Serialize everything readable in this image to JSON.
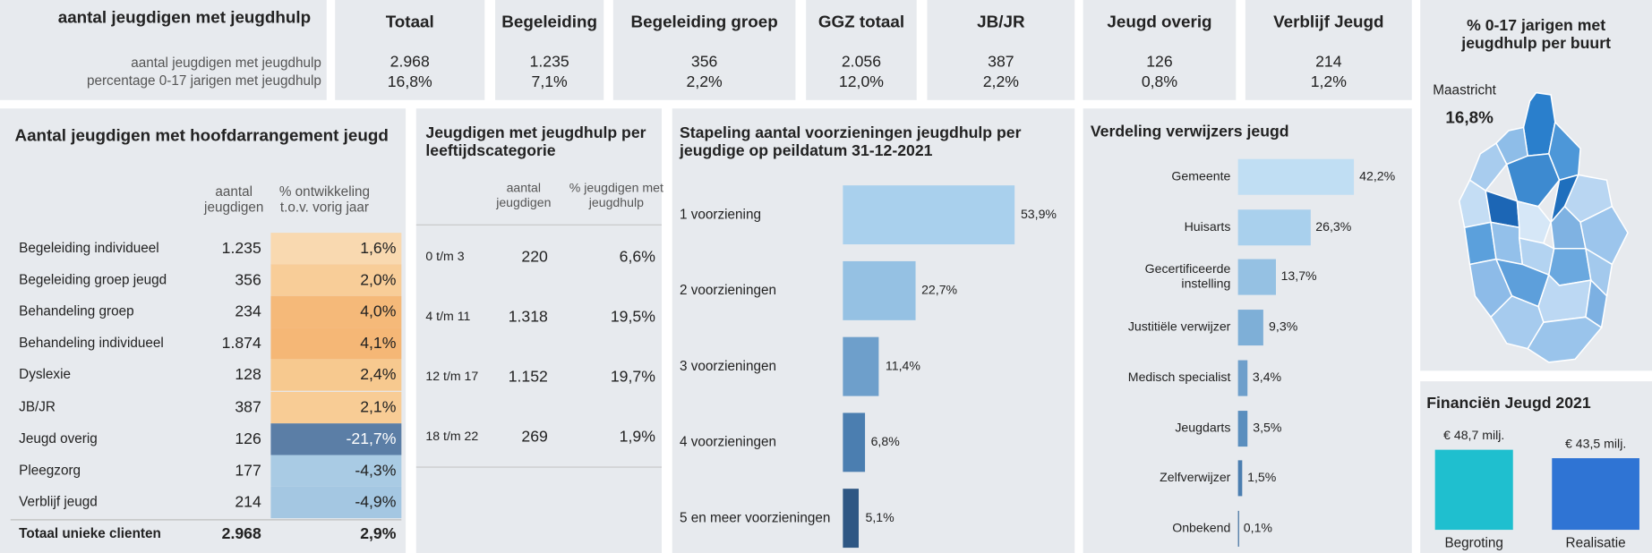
{
  "kpi": {
    "title": "aantal jeugdigen met jeugdhulp",
    "row_labels": [
      "aantal jeugdigen met jeugdhulp",
      "percentage 0-17 jarigen met jeugdhulp"
    ],
    "columns": [
      {
        "name": "Totaal",
        "count": "2.968",
        "pct": "16,8%"
      },
      {
        "name": "Begeleiding",
        "count": "1.235",
        "pct": "7,1%"
      },
      {
        "name": "Begeleiding groep",
        "count": "356",
        "pct": "2,2%"
      },
      {
        "name": "GGZ totaal",
        "count": "2.056",
        "pct": "12,0%"
      },
      {
        "name": "JB/JR",
        "count": "387",
        "pct": "2,2%"
      },
      {
        "name": "Jeugd overig",
        "count": "126",
        "pct": "0,8%"
      },
      {
        "name": "Verblijf Jeugd",
        "count": "214",
        "pct": "1,2%"
      }
    ]
  },
  "map": {
    "title": "% 0-17 jarigen met jeugdhulp per buurt",
    "place": "Maastricht",
    "value": "16,8%"
  },
  "arrangement": {
    "title": "Aantal jeugdigen met hoofdarrangement jeugd",
    "headers": [
      "aantal jeugdigen",
      "% ontwikkeling t.o.v. vorig jaar"
    ],
    "rows": [
      {
        "name": "Begeleiding individueel",
        "count": "1.235",
        "change": "1,6%",
        "color": "#f9d9b0"
      },
      {
        "name": "Begeleiding groep jeugd",
        "count": "356",
        "change": "2,0%",
        "color": "#f8cd98"
      },
      {
        "name": "Behandeling groep",
        "count": "234",
        "change": "4,0%",
        "color": "#f5b979"
      },
      {
        "name": "Behandeling individueel",
        "count": "1.874",
        "change": "4,1%",
        "color": "#f5b776"
      },
      {
        "name": "Dyslexie",
        "count": "128",
        "change": "2,4%",
        "color": "#f7c98f"
      },
      {
        "name": "JB/JR",
        "count": "387",
        "change": "2,1%",
        "color": "#f8cc95"
      },
      {
        "name": "Jeugd overig",
        "count": "126",
        "change": "-21,7%",
        "color": "#5b7ea6"
      },
      {
        "name": "Pleegzorg",
        "count": "177",
        "change": "-4,3%",
        "color": "#a9cbe4"
      },
      {
        "name": "Verblijf jeugd",
        "count": "214",
        "change": "-4,9%",
        "color": "#a4c7e2"
      }
    ],
    "total": {
      "name": "Totaal unieke clienten",
      "count": "2.968",
      "change": "2,9%"
    }
  },
  "age": {
    "title": "Jeugdigen met jeugdhulp per leeftijdscategorie",
    "headers": [
      "aantal jeugdigen",
      "% jeugdigen met jeugdhulp"
    ],
    "rows": [
      {
        "name": "0 t/m 3",
        "count": "220",
        "pct": "6,6%"
      },
      {
        "name": "4 t/m 11",
        "count": "1.318",
        "pct": "19,5%"
      },
      {
        "name": "12 t/m 17",
        "count": "1.152",
        "pct": "19,7%"
      },
      {
        "name": "18 t/m 22",
        "count": "269",
        "pct": "1,9%"
      }
    ]
  },
  "stacking": {
    "title": "Stapeling aantal voorzieningen jeugdhulp per jeugdige op peildatum 31-12-2021",
    "categories": [
      "1 voorziening",
      "2 voorzieningen",
      "3 voorzieningen",
      "4 voorzieningen",
      "5 en meer voorzieningen"
    ],
    "values": [
      53.9,
      22.7,
      11.4,
      6.8,
      5.1
    ],
    "value_labels": [
      "53,9%",
      "22,7%",
      "11,4%",
      "6,8%",
      "5,1%"
    ],
    "colors": [
      "#a9d0ed",
      "#95c1e3",
      "#6e9fcb",
      "#4b7eb0",
      "#2e5784"
    ]
  },
  "referrers": {
    "title": "Verdeling verwijzers jeugd",
    "categories": [
      "Gemeente",
      "Huisarts",
      "Gecertificeerde instelling",
      "Justitiële verwijzer",
      "Medisch specialist",
      "Jeugdarts",
      "Zelfverwijzer",
      "Onbekend"
    ],
    "values": [
      42.2,
      26.3,
      13.7,
      9.3,
      3.4,
      3.5,
      1.5,
      0.1
    ],
    "value_labels": [
      "42,2%",
      "26,3%",
      "13,7%",
      "9,3%",
      "3,4%",
      "3,5%",
      "1,5%",
      "0,1%"
    ],
    "colors": [
      "#c0def3",
      "#a9d0ed",
      "#95c1e3",
      "#7eafd7",
      "#6e9fcb",
      "#5a8ebe",
      "#4b7eb0",
      "#3b6a9b"
    ]
  },
  "finance": {
    "title": "Financiën Jeugd 2021",
    "categories": [
      "Begroting",
      "Realisatie"
    ],
    "values": [
      48.7,
      43.5
    ],
    "value_labels": [
      "€ 48,7 milj.",
      "€ 43,5 milj."
    ],
    "colors": [
      "#1fbfcf",
      "#2f74d4"
    ]
  }
}
